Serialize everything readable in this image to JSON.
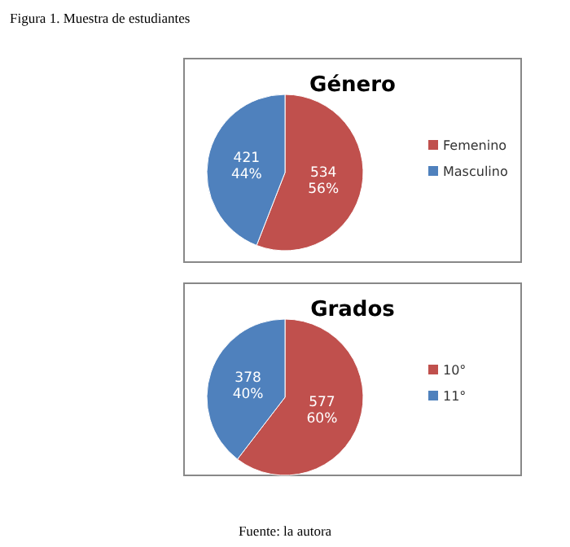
{
  "chart_data": [
    {
      "type": "pie",
      "title": "Género",
      "categories": [
        "Femenino",
        "Masculino"
      ],
      "values": [
        534,
        421
      ],
      "colors": [
        "#c0504d",
        "#4f81bd"
      ],
      "value_labels": [
        "534\n56%",
        "421\n44%"
      ],
      "legend": "right",
      "annotations": [
        "Figura 1. Muestra de estudiantes"
      ]
    },
    {
      "type": "pie",
      "title": "Grados",
      "categories": [
        "10°",
        "11°"
      ],
      "values": [
        577,
        378
      ],
      "colors": [
        "#c0504d",
        "#4f81bd"
      ],
      "value_labels": [
        "577\n60%",
        "378\n40%"
      ],
      "legend": "right",
      "annotations": [
        "Fuente: la autora"
      ]
    }
  ]
}
